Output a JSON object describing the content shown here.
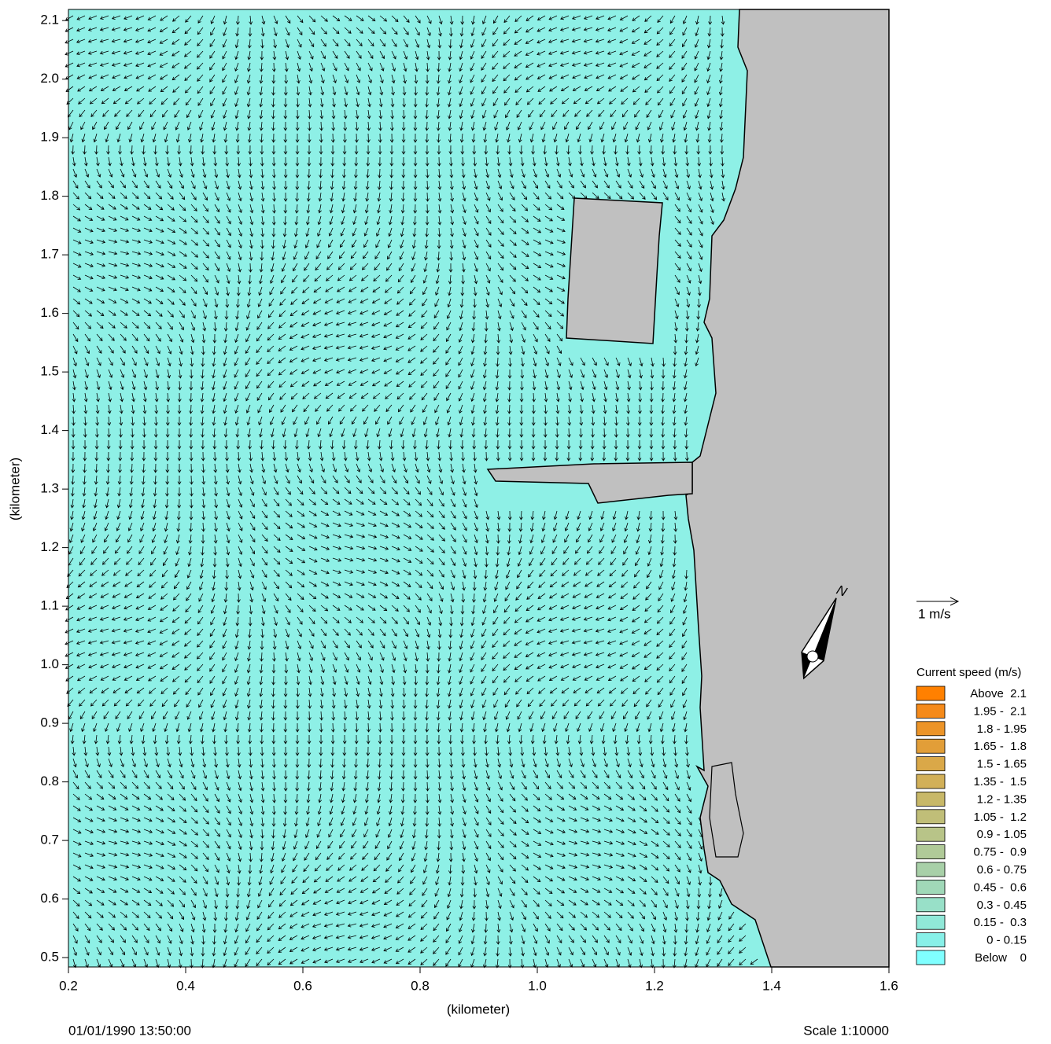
{
  "chart_data": {
    "type": "vector_field",
    "x_label": "(kilometer)",
    "y_label": "(kilometer)",
    "xlim": [
      0.2,
      1.6
    ],
    "ylim": [
      0.484,
      2.119
    ],
    "xticks": [
      0.2,
      0.4,
      0.6,
      0.8,
      {
        "value": 1,
        "label": "1.0"
      },
      1.2,
      1.4,
      1.6
    ],
    "yticks": [
      0.5,
      0.6,
      0.7,
      0.8,
      0.9,
      {
        "value": 1,
        "label": "1.0"
      },
      1.1,
      1.2,
      1.3,
      1.4,
      1.5,
      1.6,
      1.7,
      1.8,
      1.9,
      {
        "value": 2,
        "label": "2.0"
      },
      2.1
    ],
    "background_color": "#8ef0e6",
    "land_color": "#c0c0c0",
    "legend": {
      "title": "Current speed (m/s)",
      "entries": [
        {
          "label": "Above  2.1",
          "color": "#ff8000"
        },
        {
          "label": "1.95 -  2.1",
          "color": "#f58a1a"
        },
        {
          "label": "1.8 - 1.95",
          "color": "#ec9428"
        },
        {
          "label": "1.65 -  1.8",
          "color": "#e29e38"
        },
        {
          "label": "1.5 - 1.65",
          "color": "#daa848"
        },
        {
          "label": "1.35 -  1.5",
          "color": "#d2b058"
        },
        {
          "label": "1.2 - 1.35",
          "color": "#c8b868"
        },
        {
          "label": "1.05 -  1.2",
          "color": "#c0be78"
        },
        {
          "label": "0.9 - 1.05",
          "color": "#b8c488"
        },
        {
          "label": "0.75 -  0.9",
          "color": "#b0ca98"
        },
        {
          "label": "0.6 - 0.75",
          "color": "#a8d0a8"
        },
        {
          "label": "0.45 -  0.6",
          "color": "#a0d8b8"
        },
        {
          "label": "0.3 - 0.45",
          "color": "#98e0c8"
        },
        {
          "label": "0.15 -  0.3",
          "color": "#90e8d8"
        },
        {
          "label": "0 - 0.15",
          "color": "#88f0e8"
        },
        {
          "label": "Below    0",
          "color": "#80ffff"
        }
      ]
    },
    "scale_arrow_label": "1 m/s",
    "north_label": "N",
    "timestamp": "01/01/1990 13:50:00",
    "scale_text": "Scale 1:10000"
  }
}
